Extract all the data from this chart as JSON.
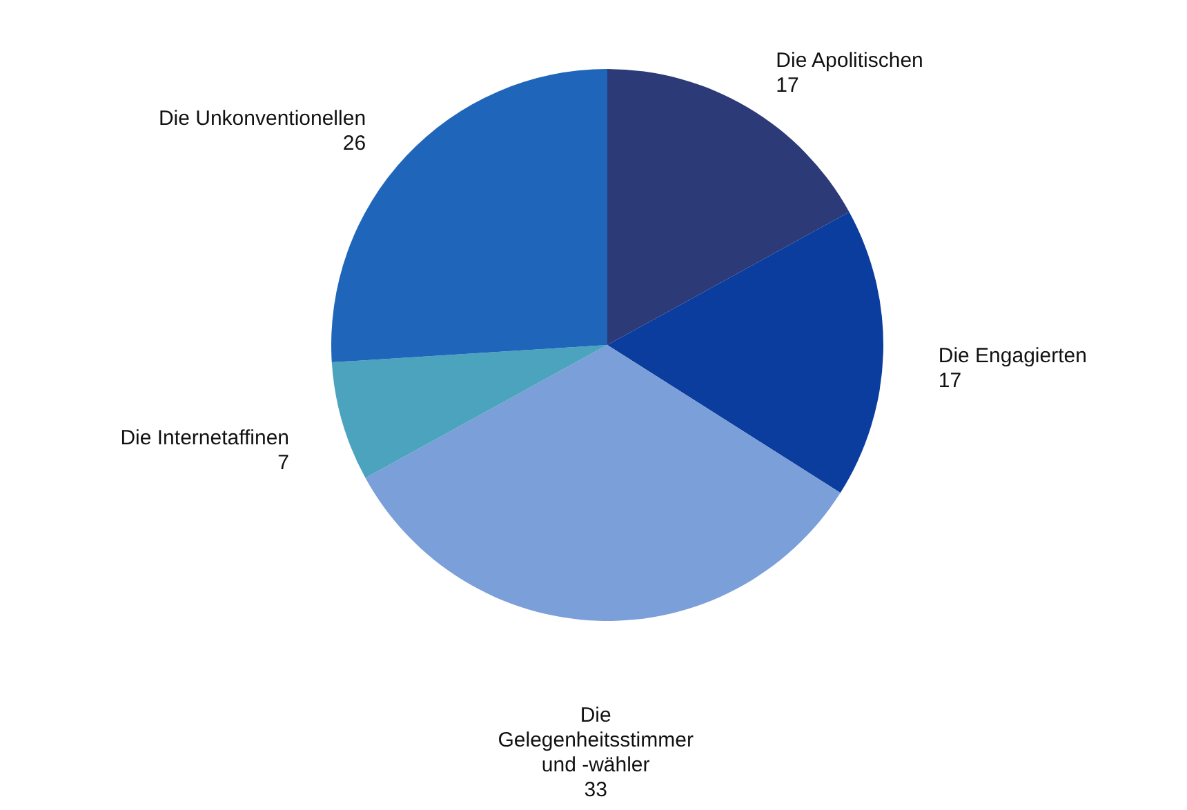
{
  "chart_data": {
    "type": "pie",
    "categories": [
      "Die Apolitischen",
      "Die Engagierten",
      "Die Gelegenheitsstimmer und -wähler",
      "Die Internetaffinen",
      "Die Unkonventionellen"
    ],
    "values": [
      17,
      17,
      33,
      7,
      26
    ],
    "colors": [
      "#2d3a78",
      "#0a3d9e",
      "#7b9fd8",
      "#4ba3bd",
      "#1f66bb"
    ],
    "data_labels": true
  }
}
